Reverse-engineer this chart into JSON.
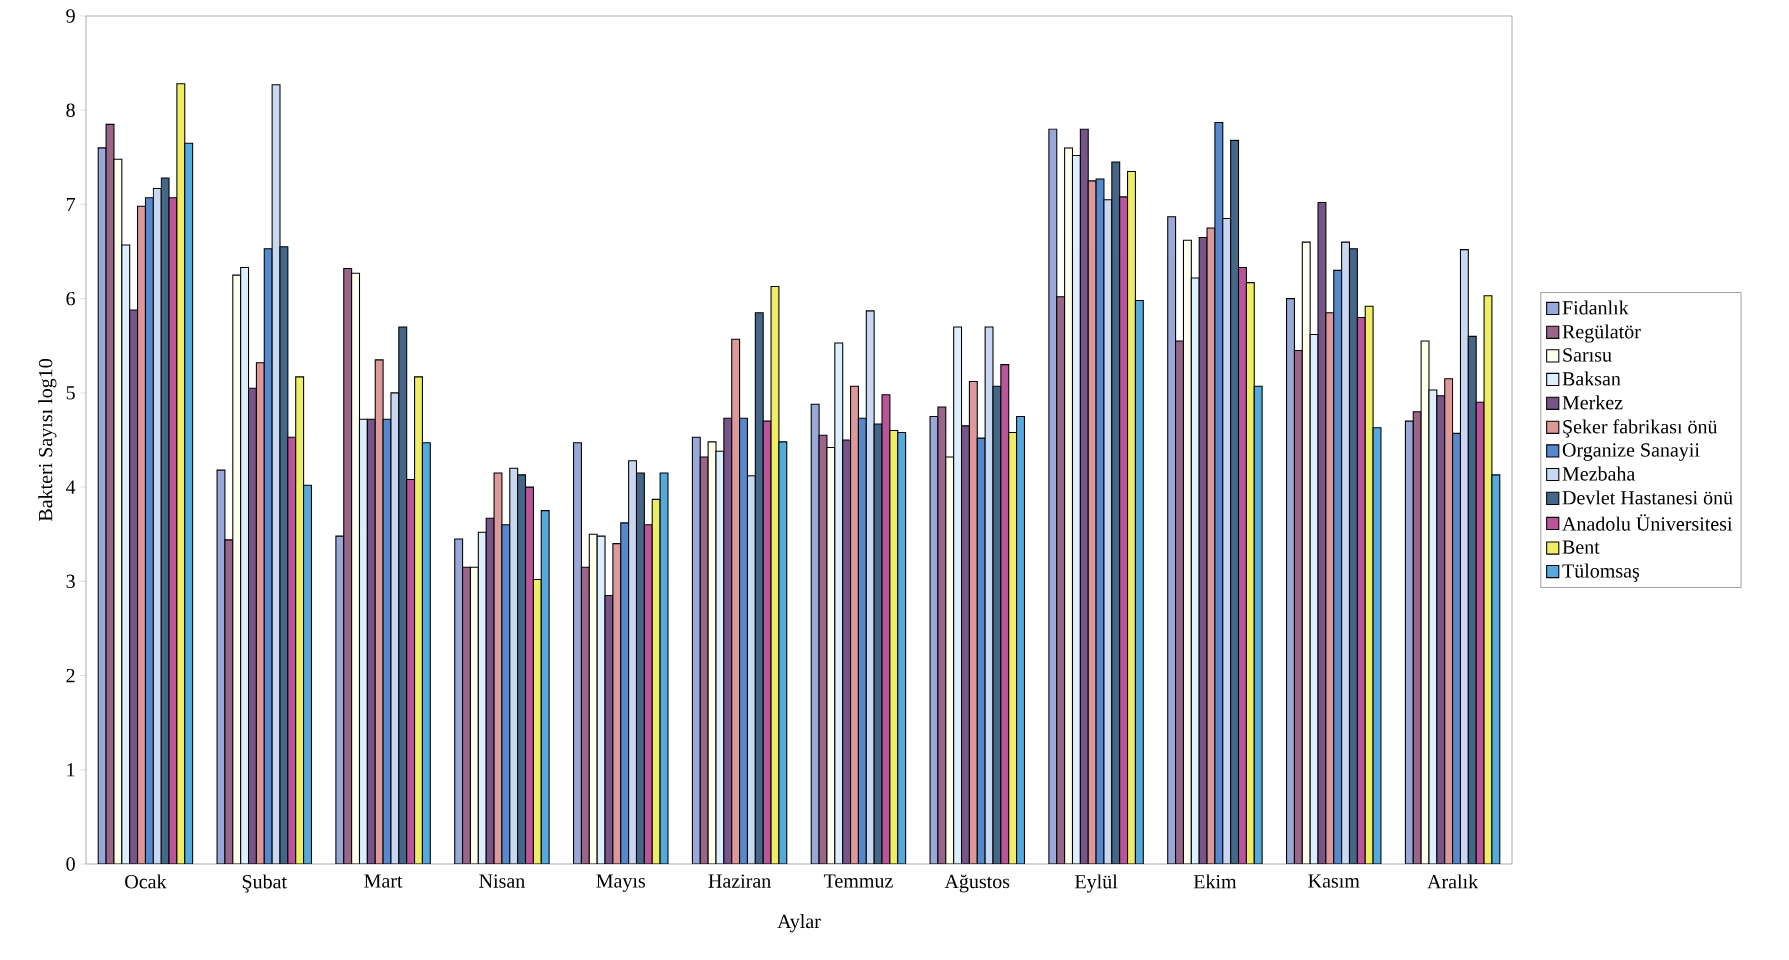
{
  "chart_data": {
    "type": "bar",
    "xlabel": "Aylar",
    "ylabel": "Bakteri Sayısı log10",
    "categories": [
      "Ocak",
      "Şubat",
      "Mart",
      "Nisan",
      "Mayıs",
      "Haziran",
      "Temmuz",
      "Ağustos",
      "Eylül",
      "Ekim",
      "Kasım",
      "Aralık"
    ],
    "ylim": [
      0,
      9
    ],
    "yticks": [
      0,
      1,
      2,
      3,
      4,
      5,
      6,
      7,
      8,
      9
    ],
    "grid": false,
    "legend": "right",
    "series": [
      {
        "name": "Fidanlık",
        "color": "#99a8d8",
        "values": [
          7.6,
          4.18,
          3.48,
          3.45,
          4.47,
          4.53,
          4.88,
          4.75,
          7.8,
          6.87,
          6.0,
          4.7
        ]
      },
      {
        "name": "Regülatör",
        "color": "#996688",
        "values": [
          7.85,
          3.44,
          6.32,
          3.15,
          3.15,
          4.32,
          4.55,
          4.85,
          6.02,
          5.55,
          5.45,
          4.8
        ]
      },
      {
        "name": "Sarısu",
        "color": "#ffffee",
        "values": [
          7.48,
          6.25,
          6.27,
          3.15,
          3.5,
          4.48,
          4.42,
          4.32,
          7.6,
          6.62,
          6.6,
          5.55
        ]
      },
      {
        "name": "Baksan",
        "color": "#ddeeff",
        "values": [
          6.57,
          6.33,
          4.72,
          3.52,
          3.48,
          4.38,
          5.53,
          5.7,
          7.52,
          6.22,
          5.62,
          5.03
        ]
      },
      {
        "name": "Merkez",
        "color": "#775588",
        "values": [
          5.88,
          5.05,
          4.72,
          3.67,
          2.85,
          4.73,
          4.5,
          4.65,
          7.8,
          6.65,
          7.02,
          4.97
        ]
      },
      {
        "name": "Şeker fabrikası önü",
        "color": "#dd9999",
        "values": [
          6.98,
          5.32,
          5.35,
          4.15,
          3.4,
          5.57,
          5.07,
          5.12,
          7.25,
          6.75,
          5.85,
          5.15
        ]
      },
      {
        "name": "Organize Sanayii",
        "color": "#5588cc",
        "values": [
          7.07,
          6.53,
          4.72,
          3.6,
          3.62,
          4.73,
          4.73,
          4.52,
          7.27,
          7.87,
          6.3,
          4.57
        ]
      },
      {
        "name": "Mezbaha",
        "color": "#c8d8f0",
        "values": [
          7.17,
          8.27,
          5.0,
          4.2,
          4.28,
          4.12,
          5.87,
          5.7,
          7.05,
          6.85,
          6.6,
          6.52
        ]
      },
      {
        "name": "Devlet Hastanesi önü",
        "color": "#446688",
        "values": [
          7.28,
          6.55,
          5.7,
          4.13,
          4.15,
          5.85,
          4.67,
          5.07,
          7.45,
          7.68,
          6.53,
          5.6
        ]
      },
      {
        "name": "Anadolu Üniversitesi",
        "color": "#bb5599",
        "values": [
          7.07,
          4.53,
          4.08,
          4.0,
          3.6,
          4.7,
          4.98,
          5.3,
          7.08,
          6.33,
          5.8,
          4.9
        ]
      },
      {
        "name": "Bent",
        "color": "#eeee66",
        "values": [
          8.28,
          5.17,
          5.17,
          3.02,
          3.87,
          6.13,
          4.6,
          4.58,
          7.35,
          6.17,
          5.92,
          6.03
        ]
      },
      {
        "name": "Tülomsaş",
        "color": "#55aadd",
        "values": [
          7.65,
          4.02,
          4.47,
          3.75,
          4.15,
          4.48,
          4.58,
          4.75,
          5.98,
          5.07,
          4.63,
          4.13
        ]
      }
    ]
  }
}
